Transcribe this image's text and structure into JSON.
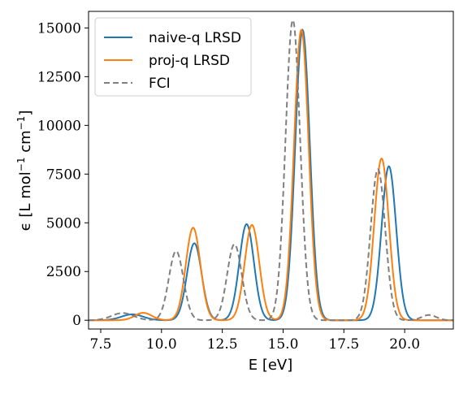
{
  "chart_data": {
    "type": "line",
    "xlabel": "E [eV]",
    "ylabel_parts": {
      "prefix": "ϵ [L mol",
      "exp1": "−1",
      "mid": " cm",
      "exp2": "−1",
      "suffix": "]"
    },
    "xlim": [
      7.0,
      22.0
    ],
    "ylim": [
      -450,
      15850
    ],
    "x_ticks": [
      7.5,
      10.0,
      12.5,
      15.0,
      17.5,
      20.0
    ],
    "x_tick_labels": [
      "7.5",
      "10.0",
      "12.5",
      "15.0",
      "17.5",
      "20.0"
    ],
    "y_ticks": [
      0,
      2500,
      5000,
      7500,
      10000,
      12500,
      15000
    ],
    "y_tick_labels": [
      "0",
      "2500",
      "5000",
      "7500",
      "10000",
      "12500",
      "15000"
    ],
    "grid": false,
    "legend_position": "top-left",
    "series": [
      {
        "name": "naive-q LRSD",
        "color": "#1f77b4",
        "dash": "solid",
        "peaks": [
          {
            "center": 8.8,
            "height": 300,
            "sigma": 0.45
          },
          {
            "center": 11.35,
            "height": 3950,
            "sigma": 0.3
          },
          {
            "center": 13.5,
            "height": 4930,
            "sigma": 0.3
          },
          {
            "center": 15.8,
            "height": 14900,
            "sigma": 0.3
          },
          {
            "center": 19.35,
            "height": 7900,
            "sigma": 0.3
          }
        ]
      },
      {
        "name": "proj-q LRSD",
        "color": "#ff7f0e",
        "dash": "solid",
        "peaks": [
          {
            "center": 9.25,
            "height": 380,
            "sigma": 0.35
          },
          {
            "center": 11.3,
            "height": 4750,
            "sigma": 0.3
          },
          {
            "center": 13.72,
            "height": 4890,
            "sigma": 0.3
          },
          {
            "center": 15.75,
            "height": 14900,
            "sigma": 0.3
          },
          {
            "center": 19.05,
            "height": 8300,
            "sigma": 0.3
          }
        ]
      },
      {
        "name": "FCI",
        "color": "#7f7f7f",
        "dash": "dashed",
        "peaks": [
          {
            "center": 8.4,
            "height": 370,
            "sigma": 0.45
          },
          {
            "center": 10.6,
            "height": 3550,
            "sigma": 0.3
          },
          {
            "center": 13.0,
            "height": 3900,
            "sigma": 0.3
          },
          {
            "center": 15.4,
            "height": 15400,
            "sigma": 0.3
          },
          {
            "center": 18.9,
            "height": 7750,
            "sigma": 0.3
          },
          {
            "center": 21.0,
            "height": 270,
            "sigma": 0.3
          }
        ]
      }
    ]
  }
}
